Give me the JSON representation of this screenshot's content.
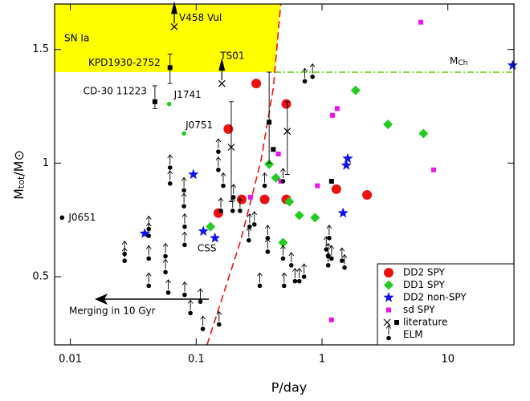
{
  "chart_data": {
    "type": "scatter",
    "xlabel": "P/day",
    "ylabel": {
      "main": "M",
      "sub": "tot",
      "rest": "/M⊙"
    },
    "xscale": "log",
    "xlim": [
      0.0075,
      33.5
    ],
    "xticks": [
      0.01,
      0.1,
      1,
      10
    ],
    "ylim": [
      0.2,
      1.7
    ],
    "yticks": [
      0.5,
      1,
      1.5
    ],
    "legend": "lower right",
    "series": [
      {
        "name": "DD2 SPY",
        "color": "#ee1111",
        "marker": "circle",
        "x": [
          0.3,
          0.18,
          0.15,
          0.23,
          0.35,
          0.52,
          0.52,
          1.3,
          2.28
        ],
        "values": [
          1.35,
          1.15,
          0.78,
          0.84,
          0.84,
          0.84,
          1.26,
          0.885,
          0.86
        ]
      },
      {
        "name": "DD1 SPY",
        "color": "#22cc22",
        "marker": "diamond",
        "x": [
          0.38,
          0.43,
          0.55,
          0.66,
          0.88,
          0.49,
          1.85,
          3.34,
          6.4,
          0.13
        ],
        "values": [
          0.995,
          0.935,
          0.83,
          0.77,
          0.76,
          0.65,
          1.32,
          1.17,
          1.13,
          0.72
        ]
      },
      {
        "name": "DD2 non-SPY",
        "color": "#1111ee",
        "marker": "star",
        "x": [
          32.7,
          0.095,
          0.039,
          0.114,
          0.141,
          1.6,
          1.56,
          1.47
        ],
        "values": [
          1.43,
          0.95,
          0.69,
          0.7,
          0.67,
          1.02,
          0.99,
          0.78
        ],
        "labels": [
          null,
          null,
          null,
          null,
          "CSS",
          null,
          null,
          null
        ]
      },
      {
        "name": "sd SPY",
        "color": "#ee11ee",
        "marker": "square",
        "x": [
          6.1,
          1.21,
          1.32,
          0.92,
          7.7,
          0.27,
          1.19,
          0.45,
          0.47
        ],
        "values": [
          1.62,
          1.21,
          1.24,
          0.9,
          0.97,
          0.85,
          0.31,
          1.04,
          0.92
        ]
      },
      {
        "name": "literature",
        "color": "#000000",
        "marker": "mixed",
        "x": [
          0.067,
          0.16,
          0.062,
          0.047,
          0.19,
          0.53,
          0.38,
          0.41,
          1.19
        ],
        "values": [
          1.6,
          1.35,
          1.42,
          1.27,
          1.07,
          1.14,
          1.18,
          1.06,
          0.92
        ],
        "markers": [
          "x",
          "x",
          "square",
          "square",
          "x",
          "x",
          "square",
          "square",
          "square"
        ],
        "err_low": [
          null,
          null,
          1.35,
          1.24,
          0.83,
          0.95,
          1.0,
          null,
          null
        ],
        "err_high": [
          null,
          null,
          1.48,
          1.34,
          1.27,
          1.27,
          1.4,
          null,
          null
        ],
        "arrows": [
          true,
          true,
          false,
          false,
          false,
          false,
          false,
          false,
          false
        ],
        "labels": [
          "V458 Vul",
          "TS01",
          "KPD1930-2752",
          "CD-30 11223",
          null,
          null,
          null,
          null,
          null
        ]
      },
      {
        "name": "ELM",
        "color": "#000000",
        "marker": "limit",
        "x": [
          0.027,
          0.027,
          0.042,
          0.042,
          0.042,
          0.042,
          0.057,
          0.057,
          0.06,
          0.062,
          0.062,
          0.08,
          0.08,
          0.081,
          0.081,
          0.081,
          0.09,
          0.108,
          0.113,
          0.152,
          0.15,
          0.15,
          0.164,
          0.157,
          0.198,
          0.195,
          0.223,
          0.266,
          0.262,
          0.29,
          0.32,
          0.35,
          0.37,
          0.37,
          0.49,
          0.49,
          0.57,
          0.61,
          0.66,
          0.72,
          0.5,
          0.73,
          0.84,
          1.08,
          1.14,
          1.12,
          1.19,
          1.44,
          1.51,
          1.12
        ],
        "values": [
          0.6,
          0.57,
          0.71,
          0.68,
          0.58,
          0.46,
          0.59,
          0.52,
          0.43,
          0.98,
          0.91,
          0.88,
          0.81,
          0.72,
          0.64,
          0.42,
          0.34,
          0.39,
          0.27,
          0.29,
          1.05,
          0.97,
          0.9,
          0.79,
          0.85,
          0.79,
          0.79,
          0.72,
          0.66,
          0.73,
          0.46,
          0.9,
          0.67,
          0.61,
          0.92,
          0.58,
          0.55,
          0.48,
          0.48,
          0.5,
          0.46,
          1.36,
          1.38,
          0.62,
          0.67,
          0.59,
          0.58,
          0.57,
          0.54,
          0.55
        ]
      }
    ],
    "extra_points": {
      "x": [
        0.061,
        0.08,
        0.0086
      ],
      "values": [
        1.26,
        1.13,
        0.76
      ],
      "colors": [
        "#22cc22",
        "#22cc22",
        "#000000"
      ],
      "labels": [
        "J1741",
        "J0751",
        "J0651"
      ]
    },
    "boundary": {
      "x": [
        0.122,
        0.226,
        0.327,
        0.41,
        0.47
      ],
      "values": [
        0.2,
        0.66,
        1.01,
        1.33,
        1.7
      ],
      "color": "#ee1111"
    },
    "sn_region": {
      "label": "SN Ia",
      "color": "#ffff00"
    },
    "chandrasekhar": {
      "value": 1.4,
      "label": {
        "main": "M",
        "sub": "Ch"
      },
      "color": "#66cc00"
    },
    "annotations": [
      "Merging in 10 Gyr"
    ]
  }
}
